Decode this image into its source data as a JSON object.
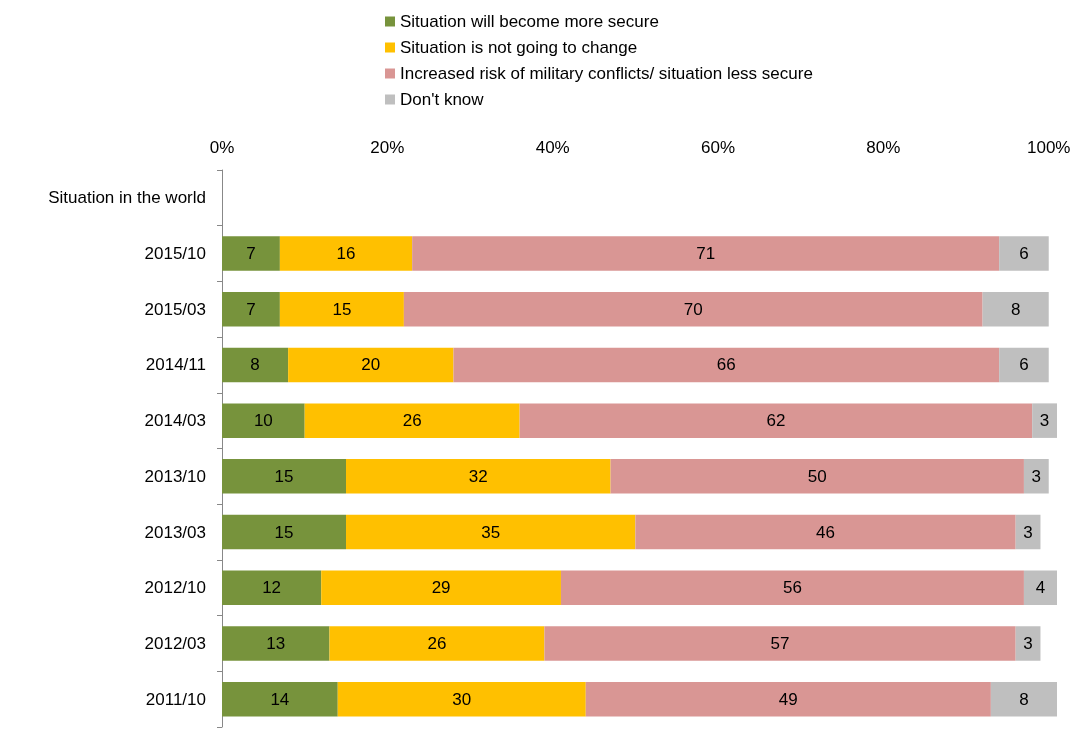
{
  "chart_data": {
    "type": "bar",
    "orientation": "horizontal",
    "stacked": true,
    "data_labels": true,
    "legend": "top",
    "grid": false,
    "categories": [
      "Situation in the world",
      "2015/10",
      "2015/03",
      "2014/11",
      "2014/03",
      "2013/10",
      "2013/03",
      "2012/10",
      "2012/03",
      "2011/10"
    ],
    "series": [
      {
        "name": "Situation will become more secure",
        "color": "#77933c",
        "values": [
          null,
          7,
          7,
          8,
          10,
          15,
          15,
          12,
          13,
          14
        ]
      },
      {
        "name": "Situation is not going to change",
        "color": "#ffc000",
        "values": [
          null,
          16,
          15,
          20,
          26,
          32,
          35,
          29,
          26,
          30
        ]
      },
      {
        "name": "Increased risk of military conflicts/ situation less secure",
        "color": "#d99694",
        "values": [
          null,
          71,
          70,
          66,
          62,
          50,
          46,
          56,
          57,
          49
        ]
      },
      {
        "name": "Don't know",
        "color": "#bfbfbf",
        "values": [
          null,
          6,
          8,
          6,
          3,
          3,
          3,
          4,
          3,
          8
        ]
      }
    ],
    "xlim": [
      0,
      101
    ],
    "xticks": [
      {
        "value": 0,
        "label": "0%"
      },
      {
        "value": 20,
        "label": "20%"
      },
      {
        "value": 40,
        "label": "40%"
      },
      {
        "value": 60,
        "label": "60%"
      },
      {
        "value": 80,
        "label": "80%"
      },
      {
        "value": 100,
        "label": "100%"
      }
    ]
  }
}
